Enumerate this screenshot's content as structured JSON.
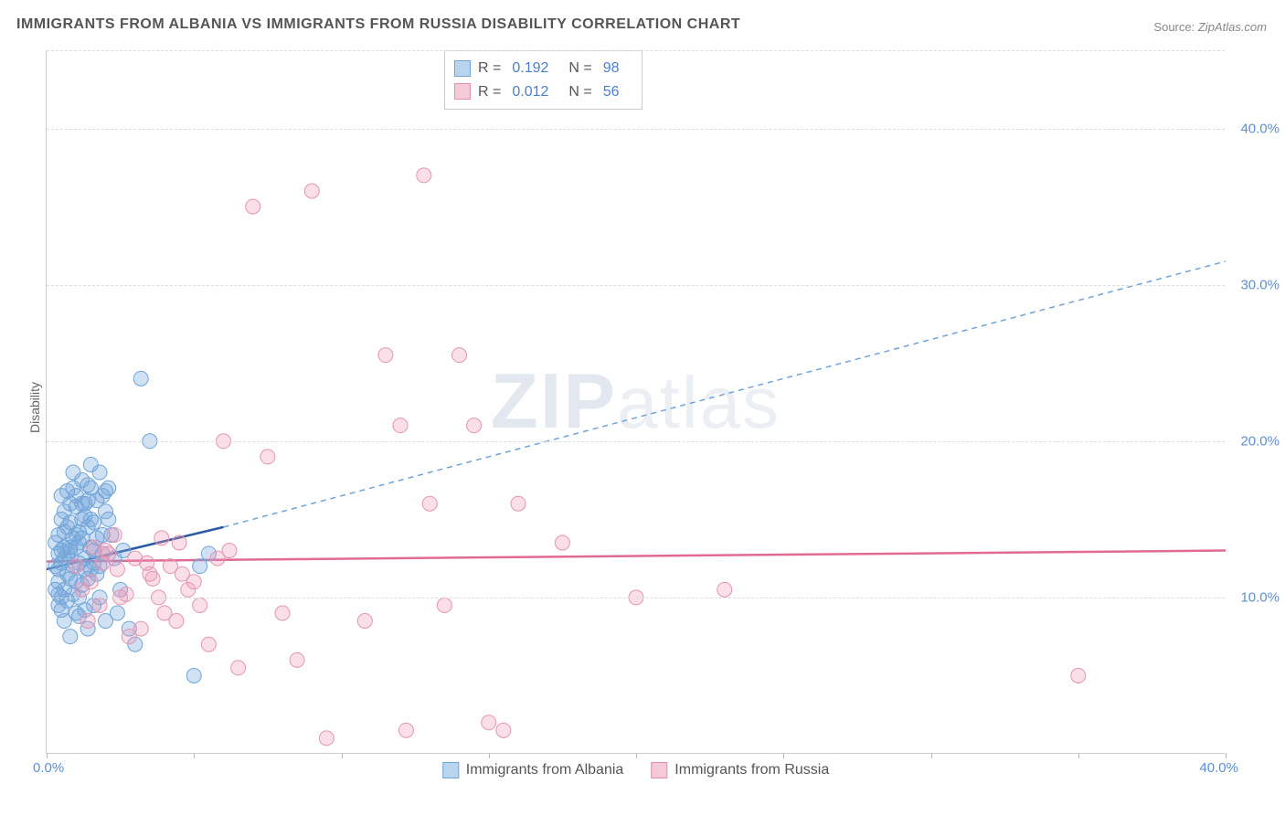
{
  "title": "IMMIGRANTS FROM ALBANIA VS IMMIGRANTS FROM RUSSIA DISABILITY CORRELATION CHART",
  "source_label": "Source:",
  "source_value": "ZipAtlas.com",
  "ylabel": "Disability",
  "watermark_bold": "ZIP",
  "watermark_light": "atlas",
  "chart": {
    "type": "scatter",
    "xlim": [
      0,
      40
    ],
    "ylim": [
      0,
      45
    ],
    "x_tick_positions": [
      0,
      5,
      10,
      15,
      20,
      25,
      30,
      35,
      40
    ],
    "x_tick_labels_shown": {
      "0": "0.0%",
      "40": "40.0%"
    },
    "y_gridlines": [
      10,
      20,
      30,
      40
    ],
    "y_tick_labels": [
      "10.0%",
      "20.0%",
      "30.0%",
      "40.0%"
    ],
    "background_color": "#ffffff",
    "grid_color": "#dddddd",
    "axis_color": "#cccccc",
    "tick_label_color": "#5b8fd6",
    "marker_radius": 8,
    "marker_stroke_width": 1,
    "series": [
      {
        "name": "Immigrants from Albania",
        "color_fill": "rgba(120,170,220,0.35)",
        "color_stroke": "#6fa4d8",
        "swatch_fill": "#b9d4ef",
        "swatch_stroke": "#6fa4d8",
        "R": "0.192",
        "N": "98",
        "trend_solid": {
          "x1": 0,
          "y1": 11.8,
          "x2": 6,
          "y2": 14.5,
          "color": "#2c5aa0",
          "width": 2.5
        },
        "trend_dashed": {
          "x1": 6,
          "y1": 14.5,
          "x2": 40,
          "y2": 31.5,
          "color": "#6fa4d8",
          "width": 1.5,
          "dash": "6,5"
        },
        "points": [
          [
            0.3,
            12
          ],
          [
            0.5,
            13
          ],
          [
            0.4,
            11
          ],
          [
            0.6,
            12.5
          ],
          [
            0.8,
            13
          ],
          [
            1.0,
            14
          ],
          [
            0.7,
            11.5
          ],
          [
            1.2,
            15
          ],
          [
            0.5,
            10
          ],
          [
            0.9,
            12
          ],
          [
            1.1,
            13.5
          ],
          [
            1.3,
            16
          ],
          [
            1.5,
            17
          ],
          [
            0.4,
            9.5
          ],
          [
            0.6,
            10.5
          ],
          [
            1.8,
            12
          ],
          [
            1.0,
            11
          ],
          [
            1.4,
            14.5
          ],
          [
            2.0,
            15.5
          ],
          [
            0.8,
            16
          ],
          [
            1.2,
            17.5
          ],
          [
            1.6,
            13
          ],
          [
            0.3,
            13.5
          ],
          [
            0.7,
            14.5
          ],
          [
            1.9,
            16.5
          ],
          [
            2.2,
            14
          ],
          [
            2.5,
            10.5
          ],
          [
            0.5,
            15
          ],
          [
            1.1,
            10
          ],
          [
            1.7,
            11.5
          ],
          [
            2.8,
            8
          ],
          [
            3.0,
            7
          ],
          [
            0.9,
            17
          ],
          [
            1.3,
            12.5
          ],
          [
            2.4,
            9
          ],
          [
            0.4,
            14
          ],
          [
            1.5,
            15
          ],
          [
            5.2,
            12
          ],
          [
            3.2,
            24
          ],
          [
            3.5,
            20
          ],
          [
            1.8,
            18
          ],
          [
            2.1,
            17
          ],
          [
            0.6,
            8.5
          ],
          [
            1.0,
            9
          ],
          [
            5.0,
            5
          ],
          [
            1.4,
            8
          ],
          [
            2.6,
            13
          ],
          [
            0.8,
            7.5
          ],
          [
            1.6,
            9.5
          ],
          [
            2.0,
            8.5
          ],
          [
            0.5,
            16.5
          ],
          [
            1.2,
            16
          ],
          [
            1.9,
            14
          ],
          [
            0.7,
            12.8
          ],
          [
            1.1,
            14.2
          ],
          [
            1.5,
            13.2
          ],
          [
            0.4,
            11.8
          ],
          [
            0.9,
            13.8
          ],
          [
            1.3,
            15.2
          ],
          [
            1.7,
            16.2
          ],
          [
            2.3,
            12.5
          ],
          [
            0.6,
            13.2
          ],
          [
            1.0,
            15.8
          ],
          [
            1.4,
            11.2
          ],
          [
            0.8,
            14.8
          ],
          [
            1.2,
            10.8
          ],
          [
            0.5,
            12.2
          ],
          [
            1.6,
            14.8
          ],
          [
            2.0,
            16.8
          ],
          [
            0.3,
            10.5
          ],
          [
            0.7,
            9.8
          ],
          [
            1.1,
            8.8
          ],
          [
            1.5,
            18.5
          ],
          [
            0.9,
            18
          ],
          [
            1.3,
            9.2
          ],
          [
            1.8,
            10
          ],
          [
            0.4,
            12.8
          ],
          [
            0.8,
            11.2
          ],
          [
            1.0,
            16.5
          ],
          [
            1.4,
            17.2
          ],
          [
            0.6,
            15.5
          ],
          [
            1.2,
            13.8
          ],
          [
            1.6,
            12.2
          ],
          [
            0.5,
            9.2
          ],
          [
            0.9,
            10.2
          ],
          [
            1.3,
            11.8
          ],
          [
            1.7,
            13.8
          ],
          [
            2.1,
            15
          ],
          [
            0.7,
            16.8
          ],
          [
            1.1,
            12.2
          ],
          [
            0.4,
            10.2
          ],
          [
            0.8,
            13.2
          ],
          [
            1.5,
            11.8
          ],
          [
            1.9,
            12.8
          ],
          [
            0.6,
            14.2
          ],
          [
            1.0,
            13.2
          ],
          [
            1.4,
            16.2
          ],
          [
            5.5,
            12.8
          ]
        ]
      },
      {
        "name": "Immigrants from Russia",
        "color_fill": "rgba(240,150,180,0.30)",
        "color_stroke": "#e394b2",
        "swatch_fill": "#f6c9d7",
        "swatch_stroke": "#e08faf",
        "R": "0.012",
        "N": "56",
        "trend_solid": {
          "x1": 0,
          "y1": 12.3,
          "x2": 40,
          "y2": 13.0,
          "color": "#e06a95",
          "width": 2.5
        },
        "points": [
          [
            1.0,
            12
          ],
          [
            1.5,
            11
          ],
          [
            2.0,
            13
          ],
          [
            2.5,
            10
          ],
          [
            3.0,
            12.5
          ],
          [
            3.5,
            11.5
          ],
          [
            4.0,
            9
          ],
          [
            4.5,
            13.5
          ],
          [
            1.2,
            10.5
          ],
          [
            1.8,
            9.5
          ],
          [
            2.3,
            14
          ],
          [
            3.2,
            8
          ],
          [
            3.8,
            10
          ],
          [
            4.2,
            12
          ],
          [
            5.0,
            11
          ],
          [
            5.5,
            7
          ],
          [
            6.0,
            20
          ],
          [
            6.5,
            5.5
          ],
          [
            7.0,
            35
          ],
          [
            7.5,
            19
          ],
          [
            8.0,
            9
          ],
          [
            8.5,
            6
          ],
          [
            9.0,
            36
          ],
          [
            9.5,
            1
          ],
          [
            10.8,
            8.5
          ],
          [
            11.5,
            25.5
          ],
          [
            12.0,
            21
          ],
          [
            12.2,
            1.5
          ],
          [
            12.8,
            37
          ],
          [
            13.0,
            16
          ],
          [
            13.5,
            9.5
          ],
          [
            14.0,
            25.5
          ],
          [
            14.5,
            21
          ],
          [
            15.0,
            2
          ],
          [
            15.5,
            1.5
          ],
          [
            16.0,
            16
          ],
          [
            17.5,
            13.5
          ],
          [
            20.0,
            10
          ],
          [
            23.0,
            10.5
          ],
          [
            35.0,
            5
          ],
          [
            1.4,
            8.5
          ],
          [
            2.8,
            7.5
          ],
          [
            2.1,
            12.8
          ],
          [
            3.6,
            11.2
          ],
          [
            4.8,
            10.5
          ],
          [
            1.6,
            13.2
          ],
          [
            2.4,
            11.8
          ],
          [
            3.4,
            12.2
          ],
          [
            4.4,
            8.5
          ],
          [
            5.2,
            9.5
          ],
          [
            6.2,
            13
          ],
          [
            1.9,
            12.2
          ],
          [
            2.7,
            10.2
          ],
          [
            3.9,
            13.8
          ],
          [
            4.6,
            11.5
          ],
          [
            5.8,
            12.5
          ]
        ]
      }
    ]
  },
  "legend": {
    "R_label": "R =",
    "N_label": "N ="
  }
}
